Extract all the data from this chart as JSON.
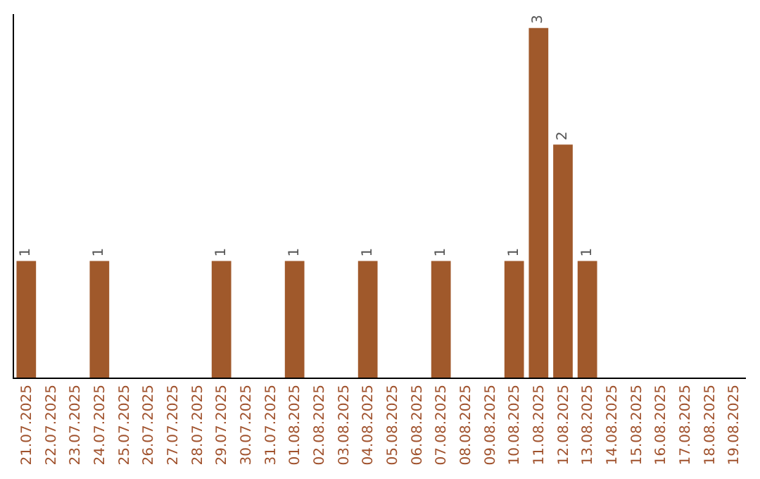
{
  "chart_data": {
    "type": "bar",
    "categories": [
      "21.07.2025",
      "22.07.2025",
      "23.07.2025",
      "24.07.2025",
      "25.07.2025",
      "26.07.2025",
      "27.07.2025",
      "28.07.2025",
      "29.07.2025",
      "30.07.2025",
      "31.07.2025",
      "01.08.2025",
      "02.08.2025",
      "03.08.2025",
      "04.08.2025",
      "05.08.2025",
      "06.08.2025",
      "07.08.2025",
      "08.08.2025",
      "09.08.2025",
      "10.08.2025",
      "11.08.2025",
      "12.08.2025",
      "13.08.2025",
      "14.08.2025",
      "15.08.2025",
      "16.08.2025",
      "17.08.2025",
      "18.08.2025",
      "19.08.2025"
    ],
    "values": [
      1,
      0,
      0,
      1,
      0,
      0,
      0,
      0,
      1,
      0,
      0,
      1,
      0,
      0,
      1,
      0,
      0,
      1,
      0,
      0,
      1,
      3,
      2,
      1,
      0,
      0,
      0,
      0,
      0,
      0
    ],
    "value_labels": [
      "1",
      null,
      null,
      "1",
      null,
      null,
      null,
      null,
      "1",
      null,
      null,
      "1",
      null,
      null,
      "1",
      null,
      null,
      "1",
      null,
      null,
      "1",
      "3",
      "2",
      "1",
      null,
      null,
      null,
      null,
      null,
      null
    ],
    "color": "#a0592b",
    "tick_labels": "x"
  }
}
